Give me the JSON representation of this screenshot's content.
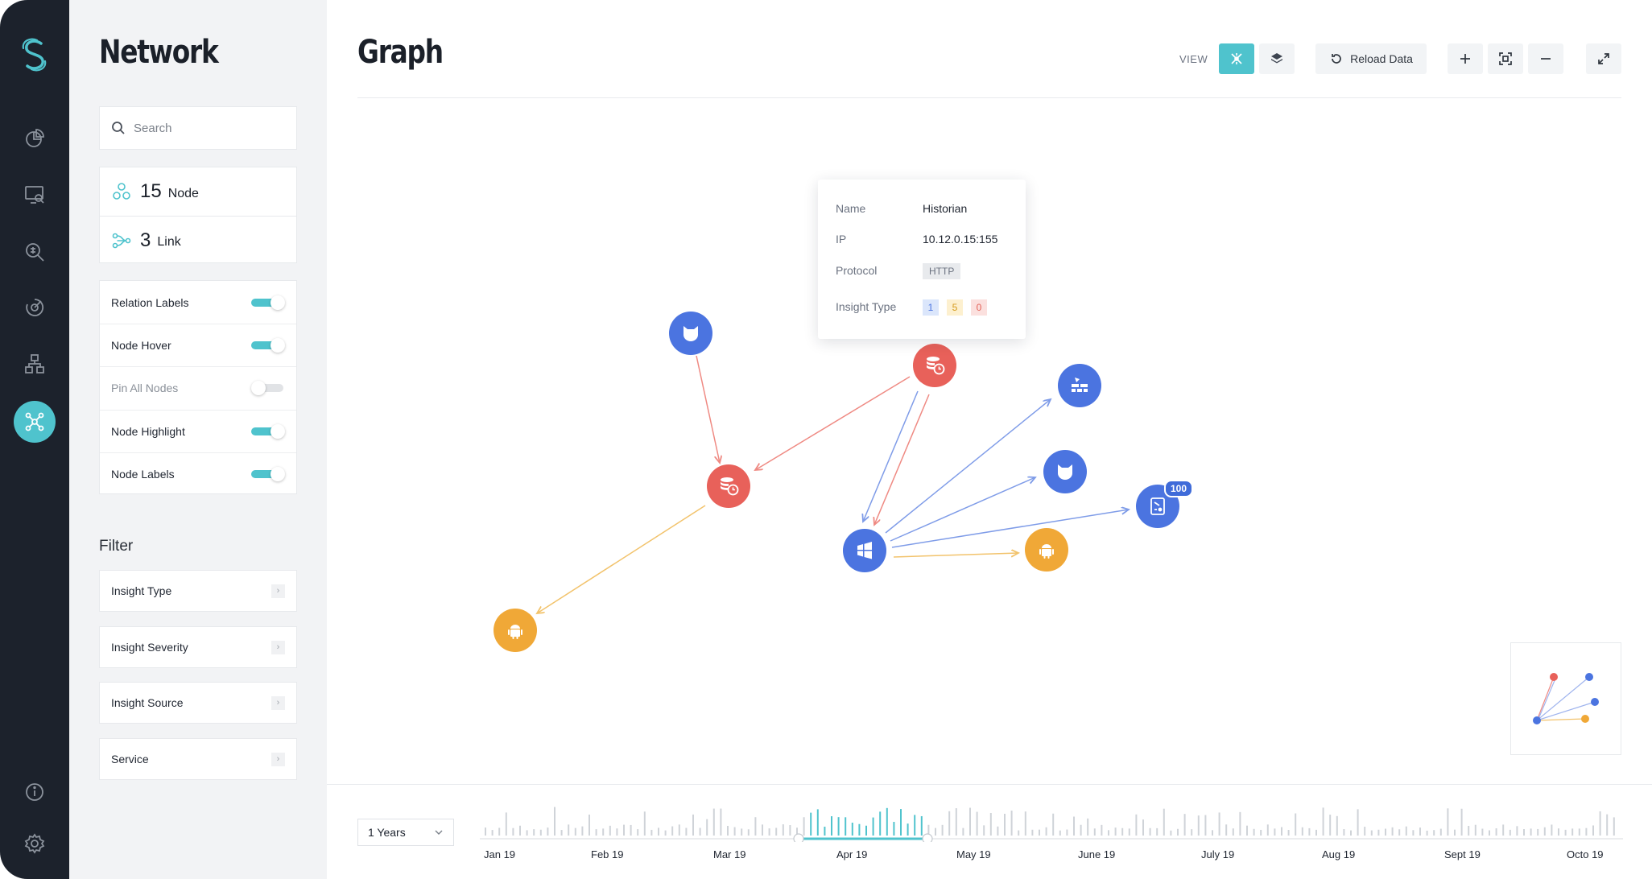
{
  "rail": {
    "items": [
      {
        "name": "rail-dashboard",
        "icon": "pie-chart-icon"
      },
      {
        "name": "rail-monitor",
        "icon": "monitor-search-icon"
      },
      {
        "name": "rail-threats",
        "icon": "bug-search-icon"
      },
      {
        "name": "rail-scan",
        "icon": "radar-icon"
      },
      {
        "name": "rail-hierarchy",
        "icon": "hierarchy-icon"
      },
      {
        "name": "rail-network",
        "icon": "network-icon",
        "active": true
      }
    ],
    "bottom": [
      {
        "name": "rail-info",
        "icon": "info-icon"
      },
      {
        "name": "rail-settings",
        "icon": "gear-icon"
      }
    ]
  },
  "sidebar": {
    "title": "Network",
    "search_placeholder": "Search",
    "stats": {
      "nodes": {
        "count": "15",
        "label": "Node"
      },
      "links": {
        "count": "3",
        "label": "Link"
      }
    },
    "toggles": [
      {
        "label": "Relation Labels",
        "on": true
      },
      {
        "label": "Node Hover",
        "on": true
      },
      {
        "label": "Pin All Nodes",
        "on": false
      },
      {
        "label": "Node Highlight",
        "on": true
      },
      {
        "label": "Node Labels",
        "on": true
      }
    ],
    "filter_title": "Filter",
    "filters": [
      "Insight Type",
      "Insight Severity",
      "Insight Source",
      "Service"
    ]
  },
  "header": {
    "title": "Graph",
    "view_label": "VIEW",
    "reload_label": "Reload Data"
  },
  "tooltip": {
    "name_key": "Name",
    "name_val": "Historian",
    "ip_key": "IP",
    "ip_val": "10.12.0.15:155",
    "protocol_key": "Protocol",
    "protocol_val": "HTTP",
    "insight_key": "Insight Type",
    "insights": [
      "1",
      "5",
      "0"
    ]
  },
  "badge": "100",
  "colors": {
    "accent": "#4fc3cd",
    "blue": "#4b74e0",
    "red": "#e8615a",
    "orange": "#f0a837",
    "rail": "#1c222c"
  },
  "timeline": {
    "range_label": "1 Years",
    "months": [
      "Jan 19",
      "Feb 19",
      "Mar 19",
      "Apr 19",
      "May 19",
      "June 19",
      "July 19",
      "Aug 19",
      "Sept 19",
      "Octo 19"
    ]
  }
}
